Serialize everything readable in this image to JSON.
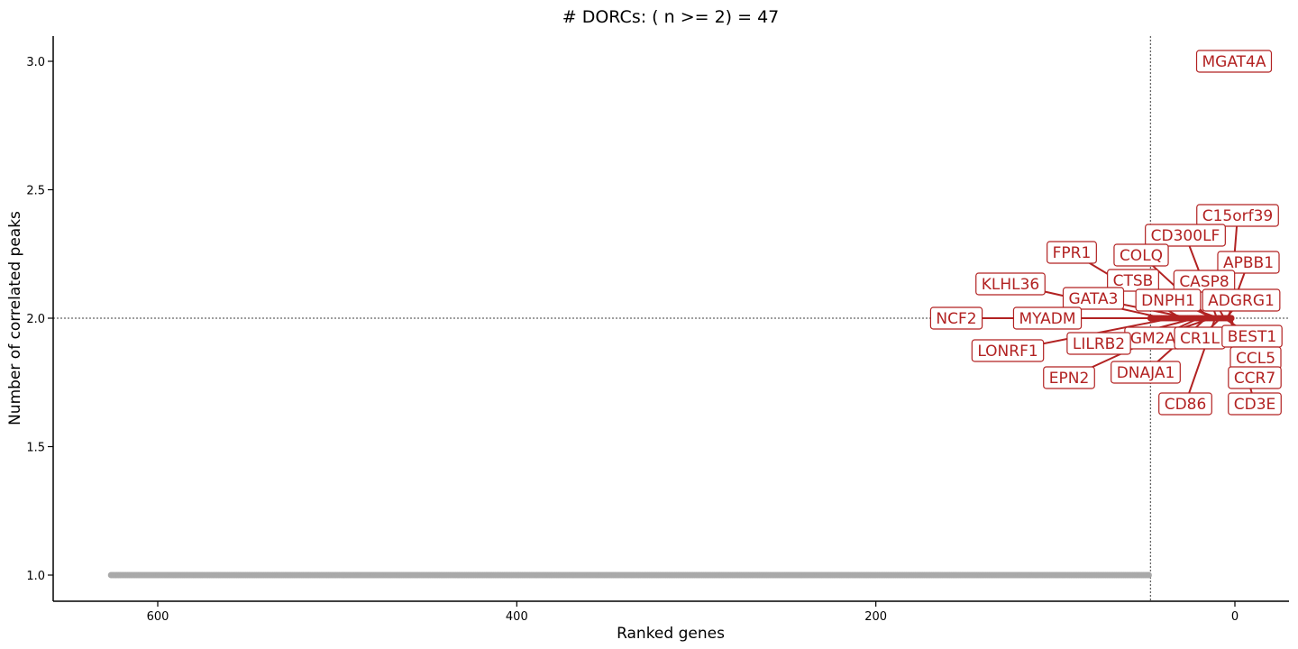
{
  "chart_data": {
    "type": "scatter",
    "title": "# DORCs: ( n >= 2) = 47",
    "xlabel": "Ranked genes",
    "ylabel": "Number of correlated peaks",
    "xlim": [
      660,
      -15
    ],
    "ylim": [
      0.9,
      3.1
    ],
    "x_ticks": [
      600,
      400,
      200,
      0
    ],
    "y_ticks": [
      1.0,
      1.5,
      2.0,
      2.5,
      3.0
    ],
    "x_tick_labels": [
      "600",
      "400",
      "200",
      "0"
    ],
    "y_tick_labels": [
      "1.0",
      "1.5",
      "2.0",
      "2.5",
      "3.0"
    ],
    "threshold_y": 2,
    "threshold_x": 47,
    "grid": false,
    "colors": {
      "dorc": "#B22222",
      "background": "#A9A9A9",
      "reference_line": "#666666"
    },
    "series": [
      {
        "x_start": 47,
        "x_end": 2,
        "y": 2,
        "n_points": 45
      },
      {
        "x": 1,
        "y": 3
      },
      {
        "x": 2,
        "y": 2
      },
      {
        "x_start": 48,
        "x_end": 626,
        "y": 1,
        "n_points": 579
      }
    ],
    "labels": [
      {
        "text": "MGAT4A",
        "x": 1,
        "y": 3
      },
      {
        "text": "C15orf39",
        "x": 3,
        "y": 2
      },
      {
        "text": "CD300LF",
        "x": 10,
        "y": 2
      },
      {
        "text": "FPR1",
        "x": 30,
        "y": 2
      },
      {
        "text": "COLQ",
        "x": 14,
        "y": 2
      },
      {
        "text": "APBB1",
        "x": 4,
        "y": 2
      },
      {
        "text": "KLHL36",
        "x": 40,
        "y": 2
      },
      {
        "text": "CTSB",
        "x": 12,
        "y": 2
      },
      {
        "text": "CASP8",
        "x": 6,
        "y": 2
      },
      {
        "text": "GATA3",
        "x": 25,
        "y": 2
      },
      {
        "text": "DNPH1",
        "x": 9,
        "y": 2
      },
      {
        "text": "ADGRG1",
        "x": 5,
        "y": 2
      },
      {
        "text": "NCF2",
        "x": 45,
        "y": 2
      },
      {
        "text": "MYADM",
        "x": 28,
        "y": 2
      },
      {
        "text": "GM2A",
        "x": 13,
        "y": 2
      },
      {
        "text": "CR1L",
        "x": 8,
        "y": 2
      },
      {
        "text": "BEST1",
        "x": 6,
        "y": 2
      },
      {
        "text": "LILRB2",
        "x": 22,
        "y": 2
      },
      {
        "text": "LONRF1",
        "x": 35,
        "y": 2
      },
      {
        "text": "CCL5",
        "x": 4,
        "y": 2
      },
      {
        "text": "DNAJA1",
        "x": 16,
        "y": 2
      },
      {
        "text": "EPN2",
        "x": 20,
        "y": 2
      },
      {
        "text": "CCR7",
        "x": 3,
        "y": 2
      },
      {
        "text": "CD86",
        "x": 11,
        "y": 2
      },
      {
        "text": "CD3E",
        "x": 2,
        "y": 2
      }
    ]
  }
}
